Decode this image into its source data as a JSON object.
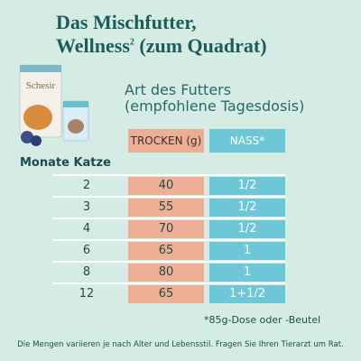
{
  "title": {
    "line1": "Das Mischfutter,",
    "line2_brand": "Wellness",
    "line2_sup": "2",
    "line2_rest": "(zum Quadrat)"
  },
  "subtitle": {
    "line1": "Art des Futters",
    "line2": "(empfohlene Tagesdosis)"
  },
  "table": {
    "row_header": "Monate Katze",
    "columns": [
      "TROCKEN (g)",
      "NASS*"
    ],
    "rows": [
      [
        2,
        40,
        "1/2"
      ],
      [
        3,
        55,
        "1/2"
      ],
      [
        4,
        70,
        "1/2"
      ],
      [
        6,
        65,
        "1"
      ],
      [
        8,
        80,
        "1"
      ],
      [
        12,
        65,
        "1+1/2"
      ]
    ]
  },
  "product": {
    "brand": "Schesir"
  },
  "footnote": "*85g-Dose oder -Beutel",
  "disclaimer": "Die Mengen variieren je nach Alter und Lebensstil. Fragen Sie Ihren Tierarzt um Rat."
}
